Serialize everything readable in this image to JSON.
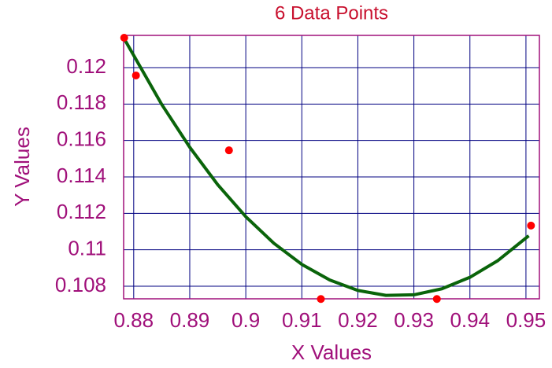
{
  "chart_data": {
    "type": "scatter",
    "title": "6 Data Points",
    "x_label": "X Values",
    "y_label": "Y Values",
    "x": [
      0.8783,
      0.8804,
      0.897,
      0.9134,
      0.9341,
      0.9509
    ],
    "values": [
      0.12164,
      0.11957,
      0.11546,
      0.1073,
      0.1073,
      0.11133
    ],
    "color": "#ff0000",
    "curve": {
      "x": [
        0.8785,
        0.885,
        0.89,
        0.895,
        0.9,
        0.905,
        0.91,
        0.915,
        0.92,
        0.925,
        0.93,
        0.935,
        0.94,
        0.945,
        0.9505
      ],
      "values": [
        0.12148,
        0.11798,
        0.11563,
        0.11357,
        0.11182,
        0.11036,
        0.1092,
        0.10834,
        0.10777,
        0.1075,
        0.10753,
        0.10786,
        0.10849,
        0.10941,
        0.11077
      ],
      "color": "#0a640a"
    },
    "xlim": [
      0.8782,
      0.9524
    ],
    "ylim": [
      0.10731,
      0.12177
    ],
    "xticks": [
      0.88,
      0.89,
      0.9,
      0.91,
      0.92,
      0.93,
      0.94,
      0.95
    ],
    "yticks": [
      0.108,
      0.11,
      0.112,
      0.114,
      0.116,
      0.118,
      0.12
    ],
    "grid": true
  }
}
